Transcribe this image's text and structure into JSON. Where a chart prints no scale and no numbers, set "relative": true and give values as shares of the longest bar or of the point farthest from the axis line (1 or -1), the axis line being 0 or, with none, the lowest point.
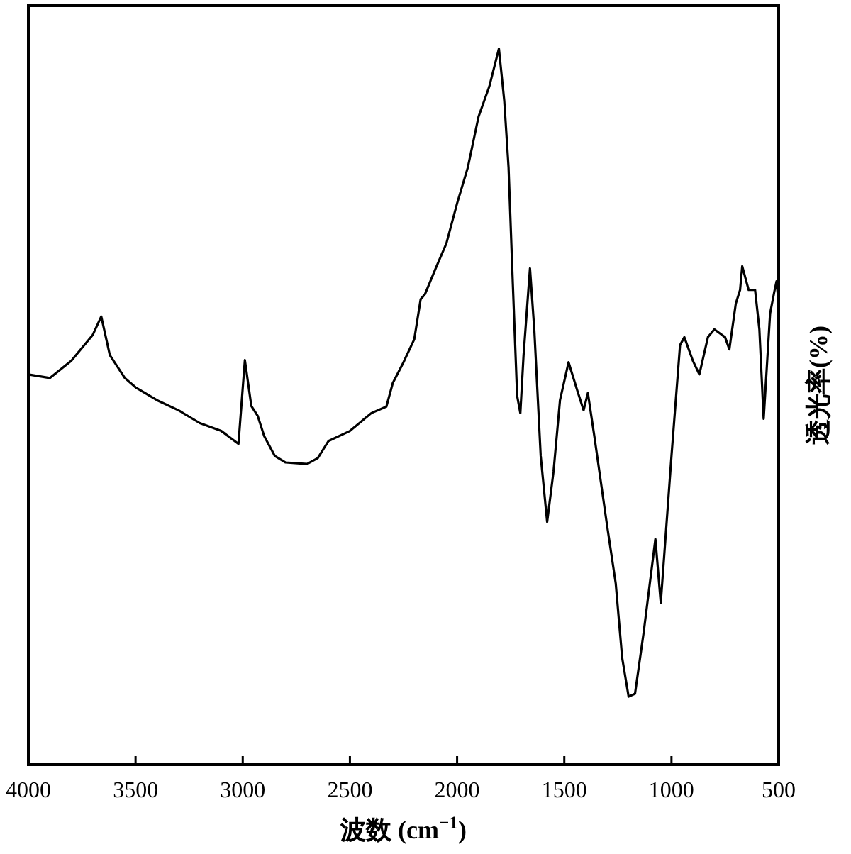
{
  "chart_data": {
    "type": "line",
    "xlabel": "波数 (cm$^{−1}$)",
    "ylabel": "透光率(%)",
    "relative": true,
    "xlim": [
      4000,
      500
    ],
    "xticks": [
      4000,
      3500,
      3000,
      2500,
      2000,
      1500,
      1000,
      500
    ],
    "series": [
      {
        "color": "#000000",
        "line_style": "solid",
        "x": [
          4000,
          3900,
          3800,
          3700,
          3660,
          3620,
          3550,
          3500,
          3400,
          3300,
          3200,
          3100,
          3020,
          2990,
          2960,
          2930,
          2900,
          2850,
          2800,
          2700,
          2650,
          2600,
          2500,
          2400,
          2330,
          2300,
          2250,
          2200,
          2170,
          2150,
          2100,
          2050,
          2000,
          1950,
          1900,
          1850,
          1805,
          1780,
          1760,
          1740,
          1720,
          1705,
          1690,
          1660,
          1640,
          1610,
          1580,
          1550,
          1520,
          1480,
          1440,
          1410,
          1390,
          1360,
          1300,
          1260,
          1230,
          1200,
          1170,
          1130,
          1075,
          1050,
          1000,
          960,
          940,
          900,
          870,
          830,
          800,
          750,
          730,
          700,
          680,
          670,
          640,
          610,
          590,
          570,
          540,
          520,
          510,
          500
        ],
        "values": [
          0.545,
          0.54,
          0.564,
          0.6,
          0.626,
          0.572,
          0.54,
          0.527,
          0.509,
          0.495,
          0.477,
          0.466,
          0.448,
          0.565,
          0.501,
          0.487,
          0.459,
          0.431,
          0.422,
          0.42,
          0.428,
          0.452,
          0.466,
          0.491,
          0.5,
          0.533,
          0.562,
          0.594,
          0.65,
          0.657,
          0.693,
          0.728,
          0.784,
          0.834,
          0.905,
          0.947,
          1.0,
          0.927,
          0.834,
          0.671,
          0.515,
          0.491,
          0.572,
          0.693,
          0.608,
          0.431,
          0.339,
          0.41,
          0.509,
          0.562,
          0.523,
          0.495,
          0.519,
          0.459,
          0.333,
          0.253,
          0.149,
          0.095,
          0.099,
          0.184,
          0.315,
          0.226,
          0.431,
          0.586,
          0.597,
          0.564,
          0.545,
          0.597,
          0.608,
          0.597,
          0.58,
          0.644,
          0.663,
          0.696,
          0.663,
          0.663,
          0.608,
          0.483,
          0.63,
          0.661,
          0.675,
          0.644
        ]
      }
    ]
  }
}
